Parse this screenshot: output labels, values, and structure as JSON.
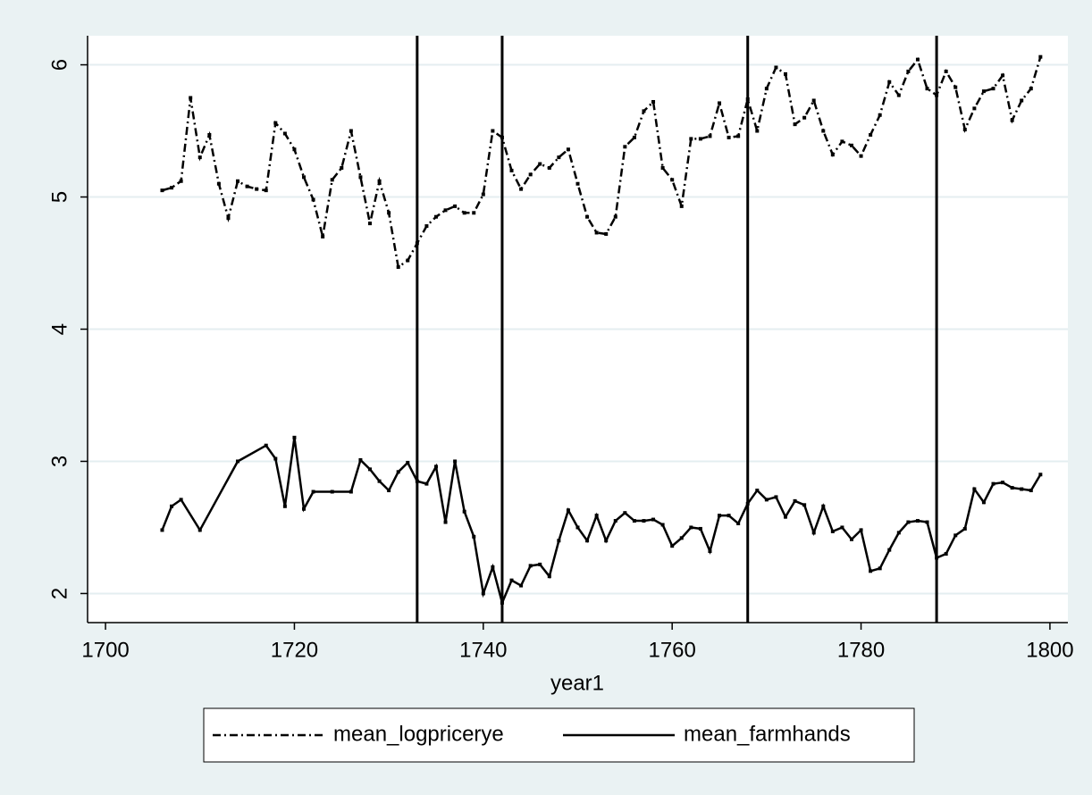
{
  "chart_data": {
    "type": "line",
    "xlabel": "year1",
    "xlim": [
      1698.1,
      1801.9
    ],
    "xticks": [
      1700,
      1720,
      1740,
      1760,
      1780,
      1800
    ],
    "ylim": [
      1.78,
      6.22
    ],
    "yticks": [
      2,
      3,
      4,
      5,
      6
    ],
    "grid": true,
    "xlines": [
      1733,
      1742,
      1768,
      1788
    ],
    "legend": "bottom",
    "series": [
      {
        "name": "mean_logpricerye",
        "color": "#000000",
        "dash": "dashdot",
        "x": [
          1706,
          1707,
          1708,
          1709,
          1710,
          1711,
          1712,
          1713,
          1714,
          1715,
          1716,
          1717,
          1718,
          1719,
          1720,
          1721,
          1722,
          1723,
          1724,
          1725,
          1726,
          1727,
          1728,
          1729,
          1730,
          1731,
          1732,
          1733,
          1734,
          1735,
          1736,
          1737,
          1738,
          1739,
          1740,
          1741,
          1742,
          1743,
          1744,
          1745,
          1746,
          1747,
          1748,
          1749,
          1750,
          1751,
          1752,
          1753,
          1754,
          1755,
          1756,
          1757,
          1758,
          1759,
          1760,
          1761,
          1762,
          1763,
          1764,
          1765,
          1766,
          1767,
          1768,
          1769,
          1770,
          1771,
          1772,
          1773,
          1774,
          1775,
          1776,
          1777,
          1778,
          1779,
          1780,
          1781,
          1782,
          1783,
          1784,
          1785,
          1786,
          1787,
          1788,
          1789,
          1790,
          1791,
          1792,
          1793,
          1794,
          1795,
          1796,
          1797,
          1798,
          1799
        ],
        "values": [
          5.05,
          5.07,
          5.12,
          5.75,
          5.3,
          5.47,
          5.1,
          4.84,
          5.12,
          5.08,
          5.06,
          5.05,
          5.56,
          5.48,
          5.36,
          5.15,
          4.98,
          4.7,
          5.13,
          5.22,
          5.5,
          5.15,
          4.8,
          5.12,
          4.88,
          4.47,
          4.52,
          4.65,
          4.78,
          4.85,
          4.9,
          4.93,
          4.88,
          4.88,
          5.02,
          5.5,
          5.45,
          5.2,
          5.06,
          5.17,
          5.25,
          5.22,
          5.3,
          5.36,
          5.1,
          4.85,
          4.73,
          4.72,
          4.85,
          5.38,
          5.45,
          5.65,
          5.72,
          5.22,
          5.13,
          4.93,
          5.44,
          5.44,
          5.46,
          5.71,
          5.45,
          5.46,
          5.74,
          5.5,
          5.82,
          5.98,
          5.93,
          5.55,
          5.6,
          5.73,
          5.5,
          5.32,
          5.42,
          5.39,
          5.31,
          5.47,
          5.62,
          5.87,
          5.77,
          5.95,
          6.04,
          5.82,
          5.77,
          5.95,
          5.83,
          5.51,
          5.67,
          5.8,
          5.82,
          5.92,
          5.58,
          5.73,
          5.82,
          6.06
        ]
      },
      {
        "name": "mean_farmhands",
        "color": "#000000",
        "dash": "solid",
        "x": [
          1706,
          1707,
          1708,
          1710,
          1714,
          1717,
          1718,
          1719,
          1720,
          1721,
          1722,
          1724,
          1726,
          1727,
          1728,
          1729,
          1730,
          1731,
          1732,
          1733,
          1734,
          1735,
          1736,
          1737,
          1738,
          1739,
          1740,
          1741,
          1742,
          1743,
          1744,
          1745,
          1746,
          1747,
          1748,
          1749,
          1750,
          1751,
          1752,
          1753,
          1754,
          1755,
          1756,
          1757,
          1758,
          1759,
          1760,
          1761,
          1762,
          1763,
          1764,
          1765,
          1766,
          1767,
          1768,
          1769,
          1770,
          1771,
          1772,
          1773,
          1774,
          1775,
          1776,
          1777,
          1778,
          1779,
          1780,
          1781,
          1782,
          1783,
          1784,
          1785,
          1786,
          1787,
          1788,
          1789,
          1790,
          1791,
          1792,
          1793,
          1794,
          1795,
          1796,
          1797,
          1798,
          1799
        ],
        "values": [
          2.48,
          2.66,
          2.71,
          2.48,
          3.0,
          3.12,
          3.02,
          2.66,
          3.18,
          2.64,
          2.77,
          2.77,
          2.77,
          3.01,
          2.94,
          2.85,
          2.78,
          2.92,
          2.99,
          2.85,
          2.83,
          2.96,
          2.54,
          3.0,
          2.62,
          2.43,
          2.0,
          2.2,
          1.93,
          2.1,
          2.06,
          2.21,
          2.22,
          2.13,
          2.4,
          2.63,
          2.5,
          2.4,
          2.59,
          2.4,
          2.55,
          2.61,
          2.55,
          2.55,
          2.56,
          2.52,
          2.36,
          2.42,
          2.5,
          2.49,
          2.32,
          2.59,
          2.59,
          2.53,
          2.68,
          2.78,
          2.71,
          2.73,
          2.58,
          2.7,
          2.67,
          2.46,
          2.66,
          2.47,
          2.5,
          2.41,
          2.48,
          2.17,
          2.19,
          2.33,
          2.46,
          2.54,
          2.55,
          2.54,
          2.27,
          2.3,
          2.44,
          2.49,
          2.79,
          2.69,
          2.83,
          2.84,
          2.8,
          2.79,
          2.78,
          2.9
        ]
      }
    ]
  }
}
